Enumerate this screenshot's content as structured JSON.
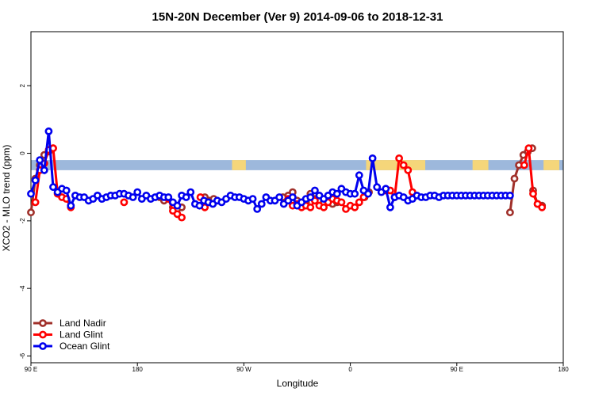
{
  "chart_data": {
    "type": "line",
    "title": "15N-20N December (Ver 9)   2014-09-06 to 2018-12-31",
    "xlabel": "Longitude",
    "ylabel": "XCO2 - MLO trend (ppm)",
    "xlim": [
      -90,
      180
    ],
    "ylim": [
      -6.2,
      3.6
    ],
    "x_tick_values": [
      -90,
      -45,
      0,
      45,
      90,
      135,
      180
    ],
    "x_tick_labels": [
      "90 E",
      "180",
      "90 W",
      "0",
      "90 E",
      "180"
    ],
    "x_tick_positions": [
      -90,
      -30,
      30,
      90,
      150,
      210
    ],
    "y_ticks": [
      -6,
      -4,
      -2,
      0,
      2
    ],
    "y_tick_labels": [
      "-6",
      "-4",
      "-2",
      "0",
      "2"
    ],
    "grid": false,
    "legend_position": "bottom-left",
    "colors": {
      "land_nadir": "#a0302a",
      "land_glint": "#ff0000",
      "ocean_glint": "#0000ee",
      "land_band": "#f5d67a",
      "ocean_band": "#9db8dc"
    },
    "map_band": {
      "y_range": [
        -0.5,
        -0.2
      ],
      "land_segments_x": [
        [
          12,
          19
        ],
        [
          80,
          110
        ],
        [
          170,
          178
        ],
        [
          134,
          142
        ]
      ]
    },
    "series": [
      {
        "name": "Land Nadir",
        "segments": [
          {
            "x": [
              -90,
              -87.5,
              -85,
              -82.5,
              -80,
              -77.5
            ],
            "y": [
              -1.75,
              -0.75,
              -0.35,
              -0.05,
              0.05,
              0.15
            ]
          },
          {
            "x": [
              180,
              182.5,
              185,
              187.5,
              190,
              192.5
            ],
            "y": [
              -1.75,
              -0.75,
              -0.35,
              -0.05,
              0.05,
              0.15
            ]
          },
          {
            "x": [
              -17.5,
              -15
            ],
            "y": [
              -1.3,
              -1.4
            ]
          },
          {
            "x": [
              -10,
              -7.5,
              -5
            ],
            "y": [
              -1.6,
              -1.65,
              -1.6
            ]
          },
          {
            "x": [
              8,
              10.5,
              13
            ],
            "y": [
              -1.3,
              -1.4,
              -1.35
            ]
          },
          {
            "x": [
              52,
              55,
              57.5,
              60,
              62.5,
              65,
              67.5,
              70,
              72.5,
              75,
              77.5,
              80,
              82.5
            ],
            "y": [
              -1.3,
              -1.25,
              -1.15,
              -1.4,
              -1.55,
              -1.45,
              -1.2,
              -1.35,
              -1.4,
              -1.45,
              -1.35,
              -1.5,
              -1.45
            ]
          },
          {
            "x": [
              98,
              100.5
            ],
            "y": [
              -1.3,
              -1.15
            ]
          },
          {
            "x": [
              193,
              195.5,
              198
            ],
            "y": [
              -1.1,
              -1.5,
              -1.55
            ]
          }
        ]
      },
      {
        "name": "Land Glint",
        "segments": [
          {
            "x": [
              -87.5,
              -85,
              -82.5,
              -80,
              -77.5,
              -75,
              -72.5
            ],
            "y": [
              -1.45,
              -0.5,
              -0.3,
              0.1,
              0.15,
              -1.2,
              -1.3
            ]
          },
          {
            "x": [
              -70,
              -67.5
            ],
            "y": [
              -1.35,
              -1.6
            ]
          },
          {
            "x": [
              -37.5
            ],
            "y": [
              -1.45
            ]
          },
          {
            "x": [
              -12.5,
              -10,
              -7.5,
              -5
            ],
            "y": [
              -1.35,
              -1.7,
              -1.8,
              -1.9
            ]
          },
          {
            "x": [
              5.5,
              8
            ],
            "y": [
              -1.3,
              -1.6
            ]
          },
          {
            "x": [
              55,
              57.5,
              60,
              62.5,
              65,
              67.5,
              70,
              72.5,
              75,
              77.5,
              80,
              82.5
            ],
            "y": [
              -1.35,
              -1.55,
              -1.5,
              -1.6,
              -1.55,
              -1.6,
              -1.4,
              -1.55,
              -1.6,
              -1.45,
              -1.35,
              -1.4
            ]
          },
          {
            "x": [
              85,
              87.5,
              90,
              92.5,
              95,
              97.5
            ],
            "y": [
              -1.45,
              -1.65,
              -1.55,
              -1.6,
              -1.45,
              -1.3
            ]
          },
          {
            "x": [
              110,
              112.5,
              115,
              117.5,
              120,
              122.5,
              125
            ],
            "y": [
              -1.1,
              -1.1,
              -1.3,
              -0.15,
              -0.35,
              -0.5,
              -1.15
            ]
          },
          {
            "x": [
              188,
              190.5,
              193,
              195.5,
              198
            ],
            "y": [
              -0.35,
              0.15,
              -1.2,
              -1.5,
              -1.6
            ]
          }
        ]
      },
      {
        "name": "Ocean Glint",
        "segments": [
          {
            "x": [
              -90,
              -87.5,
              -85,
              -82.5,
              -80,
              -77.5,
              -75,
              -72.5,
              -70,
              -67.5,
              -65,
              -62.5,
              -60,
              -57.5,
              -55,
              -52.5,
              -50,
              -47.5,
              -45,
              -42.5,
              -40,
              -37.5,
              -35,
              -32.5,
              -30,
              -27.5,
              -25,
              -22.5,
              -20,
              -17.5,
              -15,
              -12.5,
              -10,
              -7.5,
              -5,
              -2.5,
              0,
              2.5,
              5,
              7.5,
              10,
              12.5,
              15,
              17.5,
              20,
              22.5,
              25,
              27.5,
              30,
              32.5,
              35,
              37.5,
              40,
              42.5,
              45,
              47.5,
              50,
              52.5,
              55,
              57.5,
              60,
              62.5,
              65,
              67.5,
              70,
              72.5,
              75,
              77.5,
              80,
              82.5,
              85,
              87.5,
              90,
              92.5,
              95,
              97.5,
              100,
              102.5,
              105,
              107.5,
              110,
              112.5,
              115,
              117.5,
              120,
              122.5,
              125,
              127.5,
              130,
              132.5,
              135,
              137.5,
              140,
              142.5,
              145,
              147.5,
              150,
              152.5,
              155,
              157.5,
              160,
              162.5,
              165,
              167.5,
              170,
              172.5,
              175,
              177.5,
              180
            ],
            "y": [
              -1.2,
              -0.8,
              -0.2,
              -0.5,
              0.65,
              -1.0,
              -1.15,
              -1.05,
              -1.1,
              -1.55,
              -1.25,
              -1.3,
              -1.3,
              -1.4,
              -1.35,
              -1.25,
              -1.35,
              -1.3,
              -1.25,
              -1.25,
              -1.2,
              -1.2,
              -1.25,
              -1.3,
              -1.15,
              -1.35,
              -1.25,
              -1.35,
              -1.3,
              -1.25,
              -1.3,
              -1.3,
              -1.45,
              -1.55,
              -1.25,
              -1.3,
              -1.15,
              -1.5,
              -1.55,
              -1.4,
              -1.45,
              -1.5,
              -1.4,
              -1.45,
              -1.35,
              -1.25,
              -1.3,
              -1.3,
              -1.35,
              -1.4,
              -1.35,
              -1.65,
              -1.5,
              -1.3,
              -1.4,
              -1.4,
              -1.3,
              -1.5,
              -1.4,
              -1.3,
              -1.55,
              -1.45,
              -1.35,
              -1.3,
              -1.1,
              -1.25,
              -1.35,
              -1.25,
              -1.15,
              -1.2,
              -1.05,
              -1.15,
              -1.2,
              -1.2,
              -0.65,
              -1.1,
              -1.2,
              -0.15,
              -1.0,
              -1.15,
              -1.05,
              -1.6,
              -1.3,
              -1.25,
              -1.3,
              -1.4,
              -1.35,
              -1.25,
              -1.3,
              -1.3,
              -1.25,
              -1.25,
              -1.3,
              -1.25,
              -1.25,
              -1.25,
              -1.25,
              -1.25,
              -1.25,
              -1.25,
              -1.25,
              -1.25,
              -1.25,
              -1.25,
              -1.25,
              -1.25,
              -1.25,
              -1.25,
              -1.25
            ]
          }
        ]
      }
    ]
  }
}
